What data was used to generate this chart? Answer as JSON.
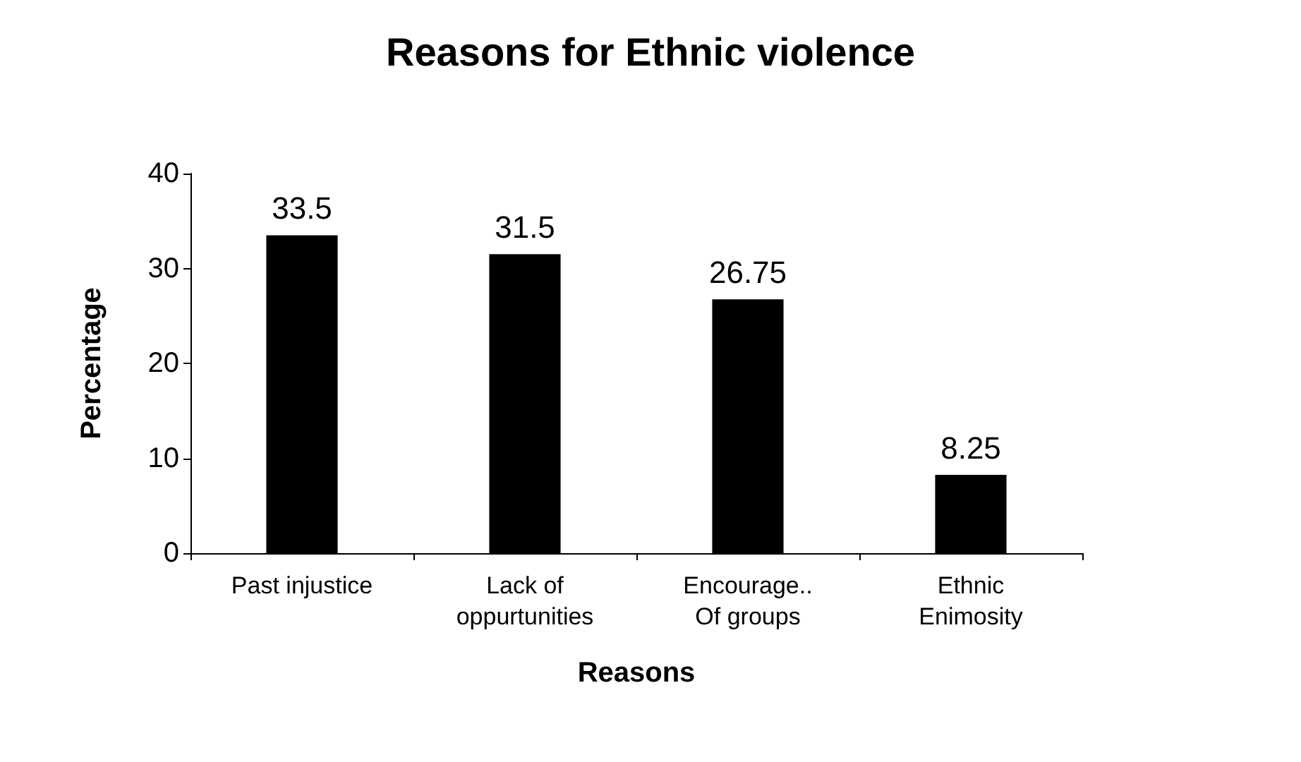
{
  "chart_data": {
    "type": "bar",
    "title": "Reasons for Ethnic violence",
    "xlabel": "Reasons",
    "ylabel": "Percentage",
    "categories": [
      "Past injustice",
      "Lack of\noppurtunities",
      "Encourage..\nOf groups",
      "Ethnic\nEnimosity"
    ],
    "values": [
      33.5,
      31.5,
      26.75,
      8.25
    ],
    "color": "#000000",
    "ylim": [
      0,
      40
    ],
    "yticks": [
      0,
      10,
      20,
      30,
      40
    ],
    "grid": false,
    "data_labels": true
  }
}
